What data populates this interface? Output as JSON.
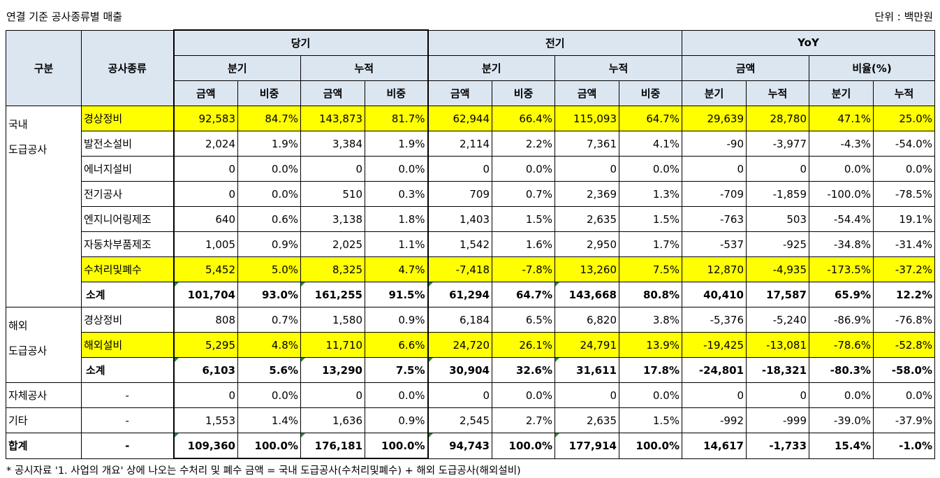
{
  "title": "연결 기준 공사종류별 매출",
  "unit": "단위 : 백만원",
  "footnote": "* 공시자료 '1. 사업의 개요' 상에 나오는 수처리 및 폐수 금액 = 국내 도급공사(수처리및폐수) + 해외 도급공사(해외설비)",
  "header": {
    "gubun": "구분",
    "type": "공사종류",
    "current": "당기",
    "prior": "전기",
    "yoy": "YoY",
    "quarter": "분기",
    "cumulative": "누적",
    "amount": "금액",
    "ratio": "비중",
    "rate": "비율(%)"
  },
  "groups": {
    "domestic_line1": "국내",
    "domestic_line2": "도급공사",
    "overseas_line1": "해외",
    "overseas_line2": "도급공사"
  },
  "rows": [
    {
      "group": "",
      "type": "경상정비",
      "cells": [
        "92,583",
        "84.7%",
        "143,873",
        "81.7%",
        "62,944",
        "66.4%",
        "115,093",
        "64.7%",
        "29,639",
        "28,780",
        "47.1%",
        "25.0%"
      ]
    },
    {
      "group": "",
      "type": "발전소설비",
      "cells": [
        "2,024",
        "1.9%",
        "3,384",
        "1.9%",
        "2,114",
        "2.2%",
        "7,361",
        "4.1%",
        "-90",
        "-3,977",
        "-4.3%",
        "-54.0%"
      ]
    },
    {
      "group": "",
      "type": "에너지설비",
      "cells": [
        "0",
        "0.0%",
        "0",
        "0.0%",
        "0",
        "0.0%",
        "0",
        "0.0%",
        "0",
        "0",
        "0.0%",
        "0.0%"
      ]
    },
    {
      "group": "",
      "type": "전기공사",
      "cells": [
        "0",
        "0.0%",
        "510",
        "0.3%",
        "709",
        "0.7%",
        "2,369",
        "1.3%",
        "-709",
        "-1,859",
        "-100.0%",
        "-78.5%"
      ]
    },
    {
      "group": "",
      "type": "엔지니어링제조",
      "cells": [
        "640",
        "0.6%",
        "3,138",
        "1.8%",
        "1,403",
        "1.5%",
        "2,635",
        "1.5%",
        "-763",
        "503",
        "-54.4%",
        "19.1%"
      ]
    },
    {
      "group": "",
      "type": "자동차부품제조",
      "cells": [
        "1,005",
        "0.9%",
        "2,025",
        "1.1%",
        "1,542",
        "1.6%",
        "2,950",
        "1.7%",
        "-537",
        "-925",
        "-34.8%",
        "-31.4%"
      ]
    },
    {
      "group": "",
      "type": "수처리및폐수",
      "cells": [
        "5,452",
        "5.0%",
        "8,325",
        "4.7%",
        "-7,418",
        "-7.8%",
        "13,260",
        "7.5%",
        "12,870",
        "-4,935",
        "-173.5%",
        "-37.2%"
      ]
    },
    {
      "group": "",
      "type": "소계",
      "cells": [
        "101,704",
        "93.0%",
        "161,255",
        "91.5%",
        "61,294",
        "64.7%",
        "143,668",
        "80.8%",
        "40,410",
        "17,587",
        "65.9%",
        "12.2%"
      ]
    },
    {
      "group": "",
      "type": "경상정비",
      "cells": [
        "808",
        "0.7%",
        "1,580",
        "0.9%",
        "6,184",
        "6.5%",
        "6,820",
        "3.8%",
        "-5,376",
        "-5,240",
        "-86.9%",
        "-76.8%"
      ]
    },
    {
      "group": "",
      "type": "해외설비",
      "cells": [
        "5,295",
        "4.8%",
        "11,710",
        "6.6%",
        "24,720",
        "26.1%",
        "24,791",
        "13.9%",
        "-19,425",
        "-13,081",
        "-78.6%",
        "-52.8%"
      ]
    },
    {
      "group": "",
      "type": "소계",
      "cells": [
        "6,103",
        "5.6%",
        "13,290",
        "7.5%",
        "30,904",
        "32.6%",
        "31,611",
        "17.8%",
        "-24,801",
        "-18,321",
        "-80.3%",
        "-58.0%"
      ]
    },
    {
      "group": "자체공사",
      "type": "-",
      "cells": [
        "0",
        "0.0%",
        "0",
        "0.0%",
        "0",
        "0.0%",
        "0",
        "0.0%",
        "0",
        "0",
        "0.0%",
        "0.0%"
      ]
    },
    {
      "group": "기타",
      "type": "-",
      "cells": [
        "1,553",
        "1.4%",
        "1,636",
        "0.9%",
        "2,545",
        "2.7%",
        "2,635",
        "1.5%",
        "-992",
        "-999",
        "-39.0%",
        "-37.9%"
      ]
    },
    {
      "group": "합계",
      "type": "-",
      "cells": [
        "109,360",
        "100.0%",
        "176,181",
        "100.0%",
        "94,743",
        "100.0%",
        "177,914",
        "100.0%",
        "14,617",
        "-1,733",
        "15.4%",
        "-1.0%"
      ]
    }
  ],
  "colors": {
    "header_bg": "#dce6f1",
    "highlight": "#ffff00",
    "marker": "#1e8f3a"
  }
}
